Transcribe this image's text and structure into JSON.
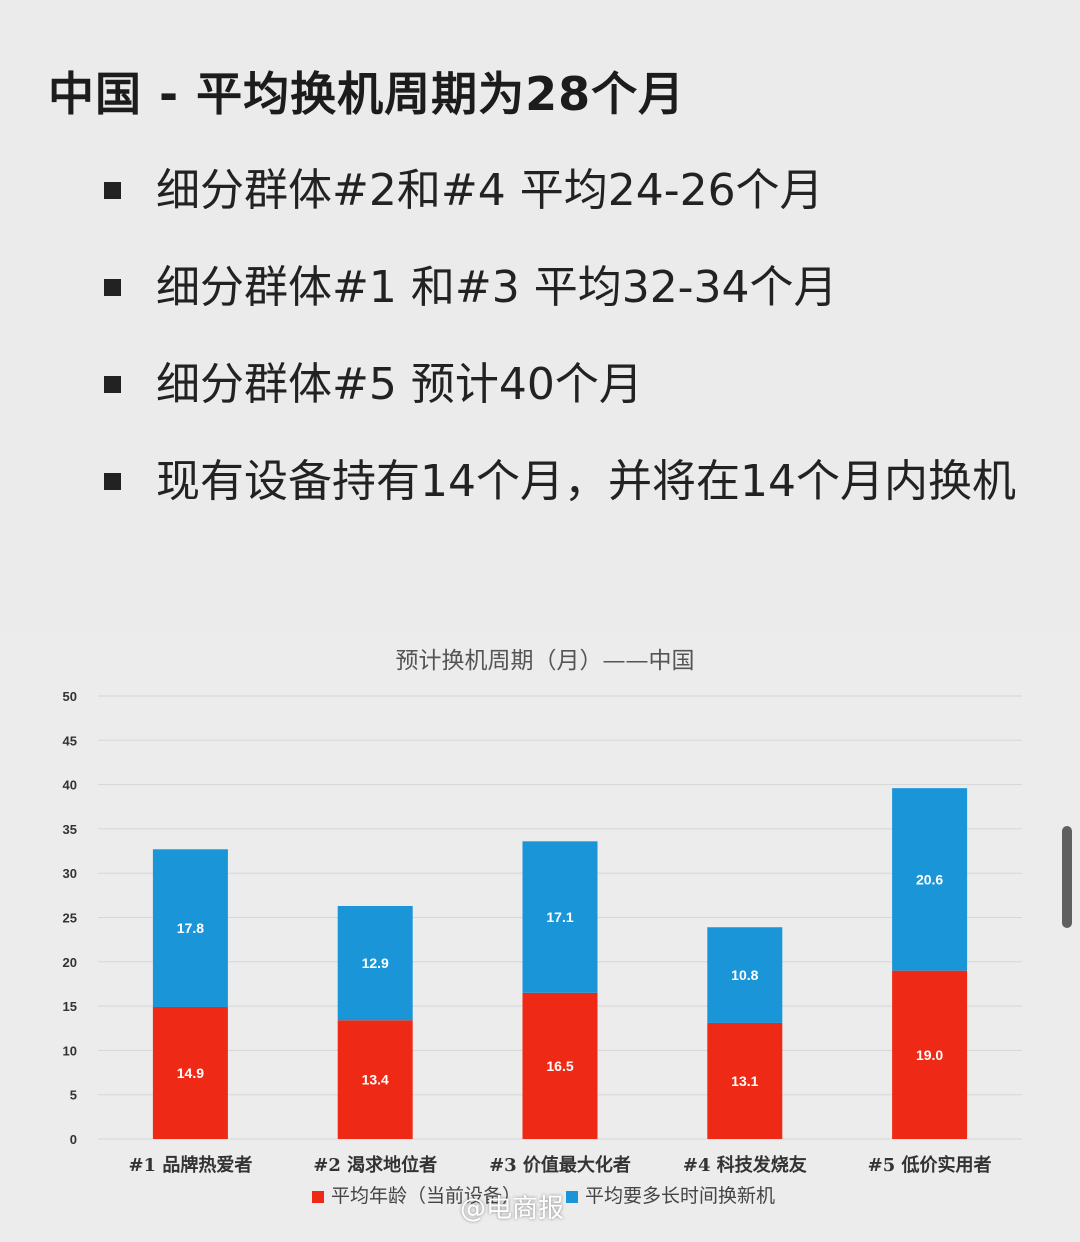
{
  "headline": "中国 - 平均换机周期为28个月",
  "bullets": [
    "细分群体#2和#4 平均24-26个月",
    "细分群体#1 和#3 平均32-34个月",
    "细分群体#5 预计40个月",
    "现有设备持有14个月，并将在14个月内换机"
  ],
  "watermark": "@电商报",
  "chart_data": {
    "type": "bar",
    "stacked": true,
    "title": "预计换机周期（月）——中国",
    "categories": [
      "#1 品牌热爱者",
      "#2 渴求地位者",
      "#3 价值最大化者",
      "#4 科技发烧友",
      "#5 低价实用者"
    ],
    "series": [
      {
        "name": "平均年龄（当前设备）",
        "color": "#ee2a16",
        "values": [
          14.9,
          13.4,
          16.5,
          13.1,
          19.0
        ]
      },
      {
        "name": "平均要多长时间换新机",
        "color": "#1a96d8",
        "values": [
          17.8,
          12.9,
          17.1,
          10.8,
          20.6
        ]
      }
    ],
    "ylim": [
      0,
      50
    ],
    "yticks": [
      0,
      5,
      10,
      15,
      20,
      25,
      30,
      35,
      40,
      45,
      50
    ],
    "grid": true,
    "legend": "bottom"
  }
}
